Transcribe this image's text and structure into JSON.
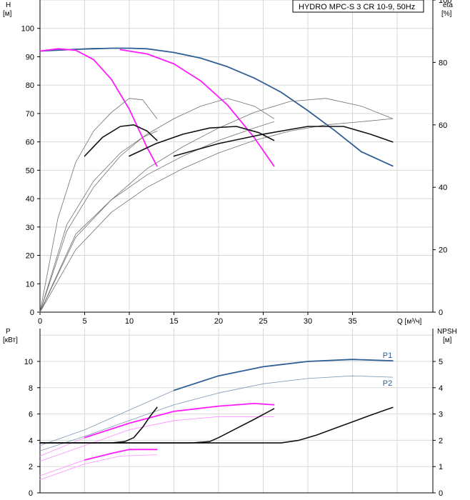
{
  "legend": "HYDRO MPC-S 3 CR 10-9, 50Hz",
  "colors": {
    "blue": "#2f5f95",
    "magenta": "#ff1aff",
    "black": "#111111",
    "gray": "#707070",
    "ltblue": "#7f97b6",
    "ltmagenta": "#ff8cff"
  },
  "chart_data": [
    {
      "type": "line",
      "panel": "top",
      "left_axis": {
        "name": "H",
        "unit": "[м]",
        "ylim": [
          0,
          110
        ],
        "ticks": [
          0,
          10,
          20,
          30,
          40,
          50,
          60,
          70,
          80,
          90,
          100
        ]
      },
      "right_axis": {
        "name": "eta",
        "unit": "[%]",
        "ylim": [
          0,
          100
        ],
        "ticks": [
          0,
          20,
          40,
          60,
          80,
          100
        ]
      },
      "x_axis": {
        "unit": "Q [м³/ч]",
        "xlim": [
          0,
          44
        ],
        "ticks": [
          0,
          5,
          10,
          15,
          20,
          25,
          30,
          35
        ]
      },
      "series": [
        {
          "axis": "H",
          "color": "blue",
          "width": 1.8,
          "x": [
            0,
            4,
            8,
            10,
            12,
            15,
            18,
            21,
            24,
            27,
            30,
            33,
            36,
            39.5
          ],
          "y": [
            92,
            92.6,
            93,
            93,
            92.8,
            91.5,
            89.5,
            86.5,
            82.5,
            77.5,
            71,
            64,
            56.5,
            51.5
          ]
        },
        {
          "axis": "H",
          "color": "blue",
          "width": 0.8,
          "x": [
            0,
            3,
            6,
            9,
            12
          ],
          "y": [
            92,
            92.6,
            93,
            93,
            92.8
          ]
        },
        {
          "axis": "H",
          "color": "magenta",
          "width": 1.8,
          "x": [
            0,
            2,
            4,
            6,
            8,
            10,
            12,
            13.1
          ],
          "y": [
            92,
            92.8,
            92.3,
            89,
            82,
            71.5,
            58,
            51.5
          ]
        },
        {
          "axis": "H",
          "color": "magenta",
          "width": 1.8,
          "x": [
            9,
            12,
            15,
            18,
            21,
            24,
            26.2
          ],
          "y": [
            92.5,
            91,
            87.5,
            81.5,
            73,
            61.5,
            51.5
          ]
        },
        {
          "axis": "eta",
          "color": "gray",
          "width": 0.8,
          "x": [
            0,
            2,
            4,
            6,
            8,
            10,
            11.5,
            13.1
          ],
          "y": [
            0,
            30,
            48,
            58,
            64,
            68.5,
            68,
            62
          ]
        },
        {
          "axis": "eta",
          "color": "gray",
          "width": 0.8,
          "x": [
            0,
            3,
            6,
            9,
            12,
            15,
            18,
            21,
            24,
            26.2
          ],
          "y": [
            0,
            28,
            42,
            51,
            57,
            62,
            66,
            68.5,
            66,
            62
          ]
        },
        {
          "axis": "eta",
          "color": "gray",
          "width": 0.8,
          "x": [
            0,
            4,
            8,
            12,
            16,
            20,
            24,
            28,
            32,
            36,
            39.5
          ],
          "y": [
            0,
            25,
            36,
            46,
            53,
            59,
            64,
            67.5,
            68.5,
            66,
            62
          ]
        },
        {
          "axis": "eta",
          "color": "gray",
          "width": 0.8,
          "x": [
            0,
            4,
            8,
            12,
            16,
            20,
            24,
            26.2
          ],
          "y": [
            0,
            24,
            36,
            44,
            50,
            55,
            59,
            61
          ]
        },
        {
          "axis": "eta",
          "color": "gray",
          "width": 0.8,
          "x": [
            0,
            4,
            8,
            12,
            16,
            20,
            24,
            28,
            32,
            36,
            39.5
          ],
          "y": [
            0,
            20,
            32,
            40,
            46,
            51,
            55,
            58,
            60,
            61,
            62
          ]
        },
        {
          "axis": "eta",
          "color": "gray",
          "width": 0.8,
          "x": [
            0,
            3,
            6,
            9,
            11.5,
            13.1
          ],
          "y": [
            0,
            26,
            40,
            50,
            56,
            58
          ]
        },
        {
          "axis": "eta",
          "color": "black",
          "width": 1.6,
          "x": [
            5,
            7,
            9,
            10.5,
            12,
            13.1
          ],
          "y": [
            50,
            56,
            59.5,
            60,
            58,
            55
          ]
        },
        {
          "axis": "eta",
          "color": "black",
          "width": 1.6,
          "x": [
            10,
            13,
            16,
            19,
            22,
            24.5,
            26.2
          ],
          "y": [
            50,
            54,
            57,
            59,
            59.5,
            57.5,
            55
          ]
        },
        {
          "axis": "eta",
          "color": "black",
          "width": 1.6,
          "x": [
            15,
            20,
            25,
            30,
            34,
            37,
            39.5
          ],
          "y": [
            50,
            54,
            57,
            59.5,
            59.5,
            57,
            54.5
          ]
        }
      ]
    },
    {
      "type": "line",
      "panel": "bottom",
      "left_axis": {
        "name": "P",
        "unit": "[кВт]",
        "ylim": [
          0,
          12.5
        ],
        "ticks": [
          0,
          2,
          4,
          6,
          8,
          10
        ]
      },
      "right_axis": {
        "name": "NPSH",
        "unit": "[м]",
        "ylim": [
          0,
          6.25
        ],
        "ticks": [
          0,
          1,
          2,
          3,
          4,
          5
        ]
      },
      "x_axis": {
        "xlim": [
          0,
          44
        ],
        "ticks": []
      },
      "series": [
        {
          "axis": "P",
          "color": "blue",
          "width": 1.8,
          "x": [
            15,
            20,
            25,
            30,
            35,
            39.5
          ],
          "y": [
            7.8,
            8.9,
            9.6,
            10.0,
            10.15,
            10.05
          ],
          "label": "P1"
        },
        {
          "axis": "P",
          "color": "ltblue",
          "width": 0.8,
          "x": [
            0,
            5,
            10,
            15
          ],
          "y": [
            3.6,
            4.8,
            6.3,
            7.8
          ]
        },
        {
          "axis": "P",
          "color": "ltblue",
          "width": 0.8,
          "x": [
            0,
            5,
            10,
            15,
            20,
            25,
            30,
            35,
            39.5
          ],
          "y": [
            3.2,
            4.3,
            5.5,
            6.7,
            7.6,
            8.3,
            8.7,
            8.9,
            8.8
          ],
          "label": "P2"
        },
        {
          "axis": "P",
          "color": "magenta",
          "width": 1.8,
          "x": [
            5,
            10,
            15,
            20,
            24,
            26.2
          ],
          "y": [
            4.2,
            5.3,
            6.2,
            6.6,
            6.8,
            6.7
          ]
        },
        {
          "axis": "P",
          "color": "ltmagenta",
          "width": 0.8,
          "x": [
            0,
            5
          ],
          "y": [
            2.8,
            4.2
          ]
        },
        {
          "axis": "P",
          "color": "ltmagenta",
          "width": 0.8,
          "x": [
            0,
            5,
            10,
            15,
            20,
            26.2
          ],
          "y": [
            2.4,
            3.6,
            4.8,
            5.5,
            5.8,
            5.8
          ]
        },
        {
          "axis": "P",
          "color": "magenta",
          "width": 1.8,
          "x": [
            5,
            8,
            10,
            13.1
          ],
          "y": [
            2.5,
            3.0,
            3.3,
            3.3
          ]
        },
        {
          "axis": "P",
          "color": "ltmagenta",
          "width": 0.8,
          "x": [
            0,
            5
          ],
          "y": [
            1.3,
            2.5
          ]
        },
        {
          "axis": "P",
          "color": "ltmagenta",
          "width": 0.8,
          "x": [
            0,
            5,
            9,
            13.1
          ],
          "y": [
            1.0,
            2.2,
            2.8,
            2.9
          ]
        },
        {
          "axis": "NPSH",
          "color": "black",
          "width": 1.6,
          "x": [
            0,
            8,
            9.5,
            10.5,
            11.5,
            12.3,
            13.1
          ],
          "y": [
            1.9,
            1.9,
            1.95,
            2.1,
            2.5,
            2.9,
            3.25
          ]
        },
        {
          "axis": "NPSH",
          "color": "black",
          "width": 1.6,
          "x": [
            0,
            17,
            19,
            20,
            22,
            24,
            26.2
          ],
          "y": [
            1.9,
            1.9,
            1.95,
            2.1,
            2.45,
            2.8,
            3.2
          ]
        },
        {
          "axis": "NPSH",
          "color": "black",
          "width": 1.6,
          "x": [
            0,
            27,
            29,
            31,
            33,
            35,
            37,
            39.5
          ],
          "y": [
            1.9,
            1.9,
            2.0,
            2.2,
            2.45,
            2.7,
            2.95,
            3.25
          ]
        }
      ],
      "labels": [
        "P1",
        "P2"
      ]
    }
  ]
}
